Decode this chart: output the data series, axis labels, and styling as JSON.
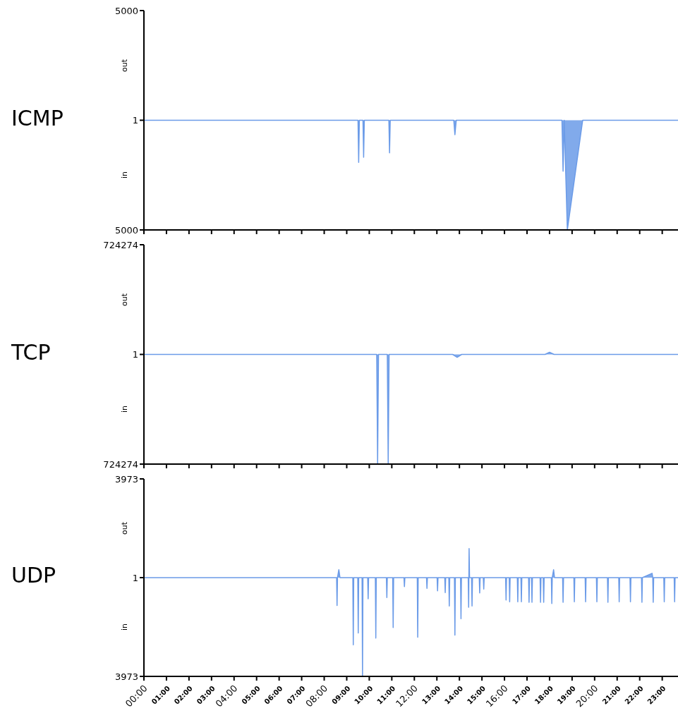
{
  "chart_data": [
    {
      "type": "area",
      "title": "ICMP",
      "annotations": [
        "out",
        "in"
      ],
      "xlim": [
        0,
        23.7
      ],
      "ylim": [
        -5000,
        5000
      ],
      "yticks": [
        {
          "value": -5000,
          "label": "5000"
        },
        1,
        5000
      ],
      "tick_labels": "y",
      "grid": false,
      "xticks": [
        {
          "value": 0,
          "label": null
        },
        {
          "value": 1,
          "label": null
        },
        {
          "value": 2,
          "label": null
        },
        {
          "value": 3,
          "label": null
        },
        {
          "value": 4,
          "label": null
        },
        {
          "value": 5,
          "label": null
        },
        {
          "value": 6,
          "label": null
        },
        {
          "value": 7,
          "label": null
        },
        {
          "value": 8,
          "label": null
        },
        {
          "value": 9,
          "label": null
        },
        {
          "value": 10,
          "label": null
        },
        {
          "value": 11,
          "label": null
        },
        {
          "value": 12,
          "label": null
        },
        {
          "value": 13,
          "label": null
        },
        {
          "value": 14,
          "label": null
        },
        {
          "value": 15,
          "label": null
        },
        {
          "value": 16,
          "label": null
        },
        {
          "value": 17,
          "label": null
        },
        {
          "value": 18,
          "label": null
        },
        {
          "value": 19,
          "label": null
        },
        {
          "value": 20,
          "label": null
        },
        {
          "value": 21,
          "label": null
        },
        {
          "value": 22,
          "label": null
        },
        {
          "value": 23,
          "label": null
        }
      ],
      "series": [
        {
          "color": "#6b9be8",
          "x": [
            0,
            9.5,
            9.53,
            9.56,
            9.72,
            9.75,
            9.78,
            10.87,
            10.9,
            10.93,
            13.75,
            13.8,
            13.86,
            18.55,
            18.6,
            18.65,
            18.79,
            19.47,
            23.7
          ],
          "values": [
            0,
            0,
            -1920,
            0,
            0,
            -1690,
            0,
            0,
            -1490,
            0,
            0,
            -660,
            0,
            0,
            -2320,
            0,
            -5000,
            0,
            0
          ]
        }
      ]
    },
    {
      "type": "area",
      "title": "TCP",
      "annotations": [
        "out",
        "in"
      ],
      "xlim": [
        0,
        23.7
      ],
      "ylim": [
        -724274,
        724274
      ],
      "yticks": [
        {
          "value": -724274,
          "label": "724274"
        },
        1,
        724274
      ],
      "tick_labels": "y",
      "grid": false,
      "xticks": [
        {
          "value": 0,
          "label": null
        },
        {
          "value": 1,
          "label": null
        },
        {
          "value": 2,
          "label": null
        },
        {
          "value": 3,
          "label": null
        },
        {
          "value": 4,
          "label": null
        },
        {
          "value": 5,
          "label": null
        },
        {
          "value": 6,
          "label": null
        },
        {
          "value": 7,
          "label": null
        },
        {
          "value": 8,
          "label": null
        },
        {
          "value": 9,
          "label": null
        },
        {
          "value": 10,
          "label": null
        },
        {
          "value": 11,
          "label": null
        },
        {
          "value": 12,
          "label": null
        },
        {
          "value": 13,
          "label": null
        },
        {
          "value": 14,
          "label": null
        },
        {
          "value": 15,
          "label": null
        },
        {
          "value": 16,
          "label": null
        },
        {
          "value": 17,
          "label": null
        },
        {
          "value": 18,
          "label": null
        },
        {
          "value": 19,
          "label": null
        },
        {
          "value": 20,
          "label": null
        },
        {
          "value": 21,
          "label": null
        },
        {
          "value": 22,
          "label": null
        },
        {
          "value": 23,
          "label": null
        }
      ],
      "series": [
        {
          "color": "#6b9be8",
          "x": [
            0,
            10.33,
            10.37,
            10.41,
            10.8,
            10.84,
            10.88,
            13.7,
            13.9,
            14.1,
            17.8,
            18.0,
            18.2,
            23.7
          ],
          "values": [
            0,
            0,
            -724274,
            0,
            0,
            -724274,
            0,
            0,
            -19000,
            0,
            0,
            14000,
            0,
            0
          ]
        }
      ]
    },
    {
      "type": "area",
      "title": "UDP",
      "annotations": [
        "out",
        "in"
      ],
      "xlim": [
        0,
        23.7
      ],
      "ylim": [
        -3973,
        3973
      ],
      "yticks": [
        {
          "value": -3973,
          "label": "3973"
        },
        1,
        3973
      ],
      "grid": false,
      "xticks": [
        {
          "value": 0,
          "label": "00:00"
        },
        {
          "value": 1,
          "label": "01:00"
        },
        {
          "value": 2,
          "label": "02:00"
        },
        {
          "value": 3,
          "label": "03:00"
        },
        {
          "value": 4,
          "label": "04:00"
        },
        {
          "value": 5,
          "label": "05:00"
        },
        {
          "value": 6,
          "label": "06:00"
        },
        {
          "value": 7,
          "label": "07:00"
        },
        {
          "value": 8,
          "label": "08:00"
        },
        {
          "value": 9,
          "label": "09:00"
        },
        {
          "value": 10,
          "label": "10:00"
        },
        {
          "value": 11,
          "label": "11:00"
        },
        {
          "value": 12,
          "label": "12:00"
        },
        {
          "value": 13,
          "label": "13:00"
        },
        {
          "value": 14,
          "label": "14:00"
        },
        {
          "value": 15,
          "label": "15:00"
        },
        {
          "value": 16,
          "label": "16:00"
        },
        {
          "value": 17,
          "label": "17:00"
        },
        {
          "value": 18,
          "label": "18:00"
        },
        {
          "value": 19,
          "label": "19:00"
        },
        {
          "value": 20,
          "label": "20:00"
        },
        {
          "value": 21,
          "label": "21:00"
        },
        {
          "value": 22,
          "label": "22:00"
        },
        {
          "value": 23,
          "label": "23:00"
        }
      ],
      "series": [
        {
          "color": "#6b9be8",
          "x": [
            0,
            8.55,
            8.57,
            8.59,
            8.65,
            8.7,
            9.27,
            9.29,
            9.31,
            9.49,
            9.51,
            9.53,
            9.68,
            9.7,
            9.72,
            9.93,
            9.95,
            9.97,
            10.27,
            10.29,
            10.31,
            10.76,
            10.78,
            10.8,
            11.04,
            11.06,
            11.08,
            11.54,
            11.56,
            11.58,
            12.13,
            12.15,
            12.17,
            12.54,
            12.56,
            12.58,
            13.01,
            13.03,
            13.05,
            13.35,
            13.37,
            13.39,
            13.53,
            13.55,
            13.57,
            13.78,
            13.8,
            13.82,
            14.05,
            14.07,
            14.09,
            14.39,
            14.41,
            14.43,
            14.45,
            14.54,
            14.56,
            14.58,
            14.88,
            14.9,
            14.92,
            15.06,
            15.08,
            15.1,
            16.05,
            16.07,
            16.09,
            16.21,
            16.23,
            16.25,
            16.57,
            16.59,
            16.61,
            16.73,
            16.75,
            16.77,
            17.07,
            17.09,
            17.11,
            17.2,
            17.22,
            17.24,
            17.58,
            17.6,
            17.62,
            17.72,
            17.74,
            17.76,
            18.08,
            18.1,
            18.12,
            18.18,
            18.22,
            18.58,
            18.6,
            18.62,
            19.08,
            19.1,
            19.12,
            19.58,
            19.6,
            19.62,
            20.08,
            20.1,
            20.12,
            20.57,
            20.59,
            20.61,
            21.07,
            21.09,
            21.11,
            21.57,
            21.59,
            21.61,
            22.08,
            22.1,
            22.12,
            22.55,
            22.58,
            22.6,
            22.62,
            23.07,
            23.09,
            23.11,
            23.53,
            23.55,
            23.57,
            23.7
          ],
          "values": [
            0,
            0,
            -1120,
            0,
            320,
            0,
            0,
            -2700,
            0,
            0,
            -2230,
            0,
            0,
            -3973,
            0,
            0,
            -850,
            0,
            0,
            -2430,
            0,
            0,
            -800,
            0,
            0,
            -2010,
            0,
            0,
            -360,
            0,
            0,
            -2400,
            0,
            0,
            -430,
            0,
            0,
            -530,
            0,
            0,
            -600,
            0,
            0,
            -1140,
            0,
            0,
            -2310,
            0,
            0,
            -1650,
            0,
            0,
            -1190,
            1170,
            0,
            0,
            -1140,
            0,
            0,
            -620,
            0,
            0,
            -460,
            0,
            0,
            -900,
            0,
            0,
            -970,
            0,
            0,
            -970,
            0,
            0,
            -970,
            0,
            0,
            -990,
            0,
            0,
            -990,
            0,
            0,
            -990,
            0,
            0,
            -990,
            0,
            0,
            -1040,
            0,
            320,
            0,
            0,
            -990,
            0,
            0,
            -970,
            0,
            0,
            -970,
            0,
            0,
            -970,
            0,
            0,
            -990,
            0,
            0,
            -970,
            0,
            0,
            -970,
            0,
            0,
            -990,
            0,
            175,
            0,
            -990,
            0,
            0,
            -970,
            0,
            0,
            -970,
            0,
            0
          ]
        }
      ]
    }
  ]
}
